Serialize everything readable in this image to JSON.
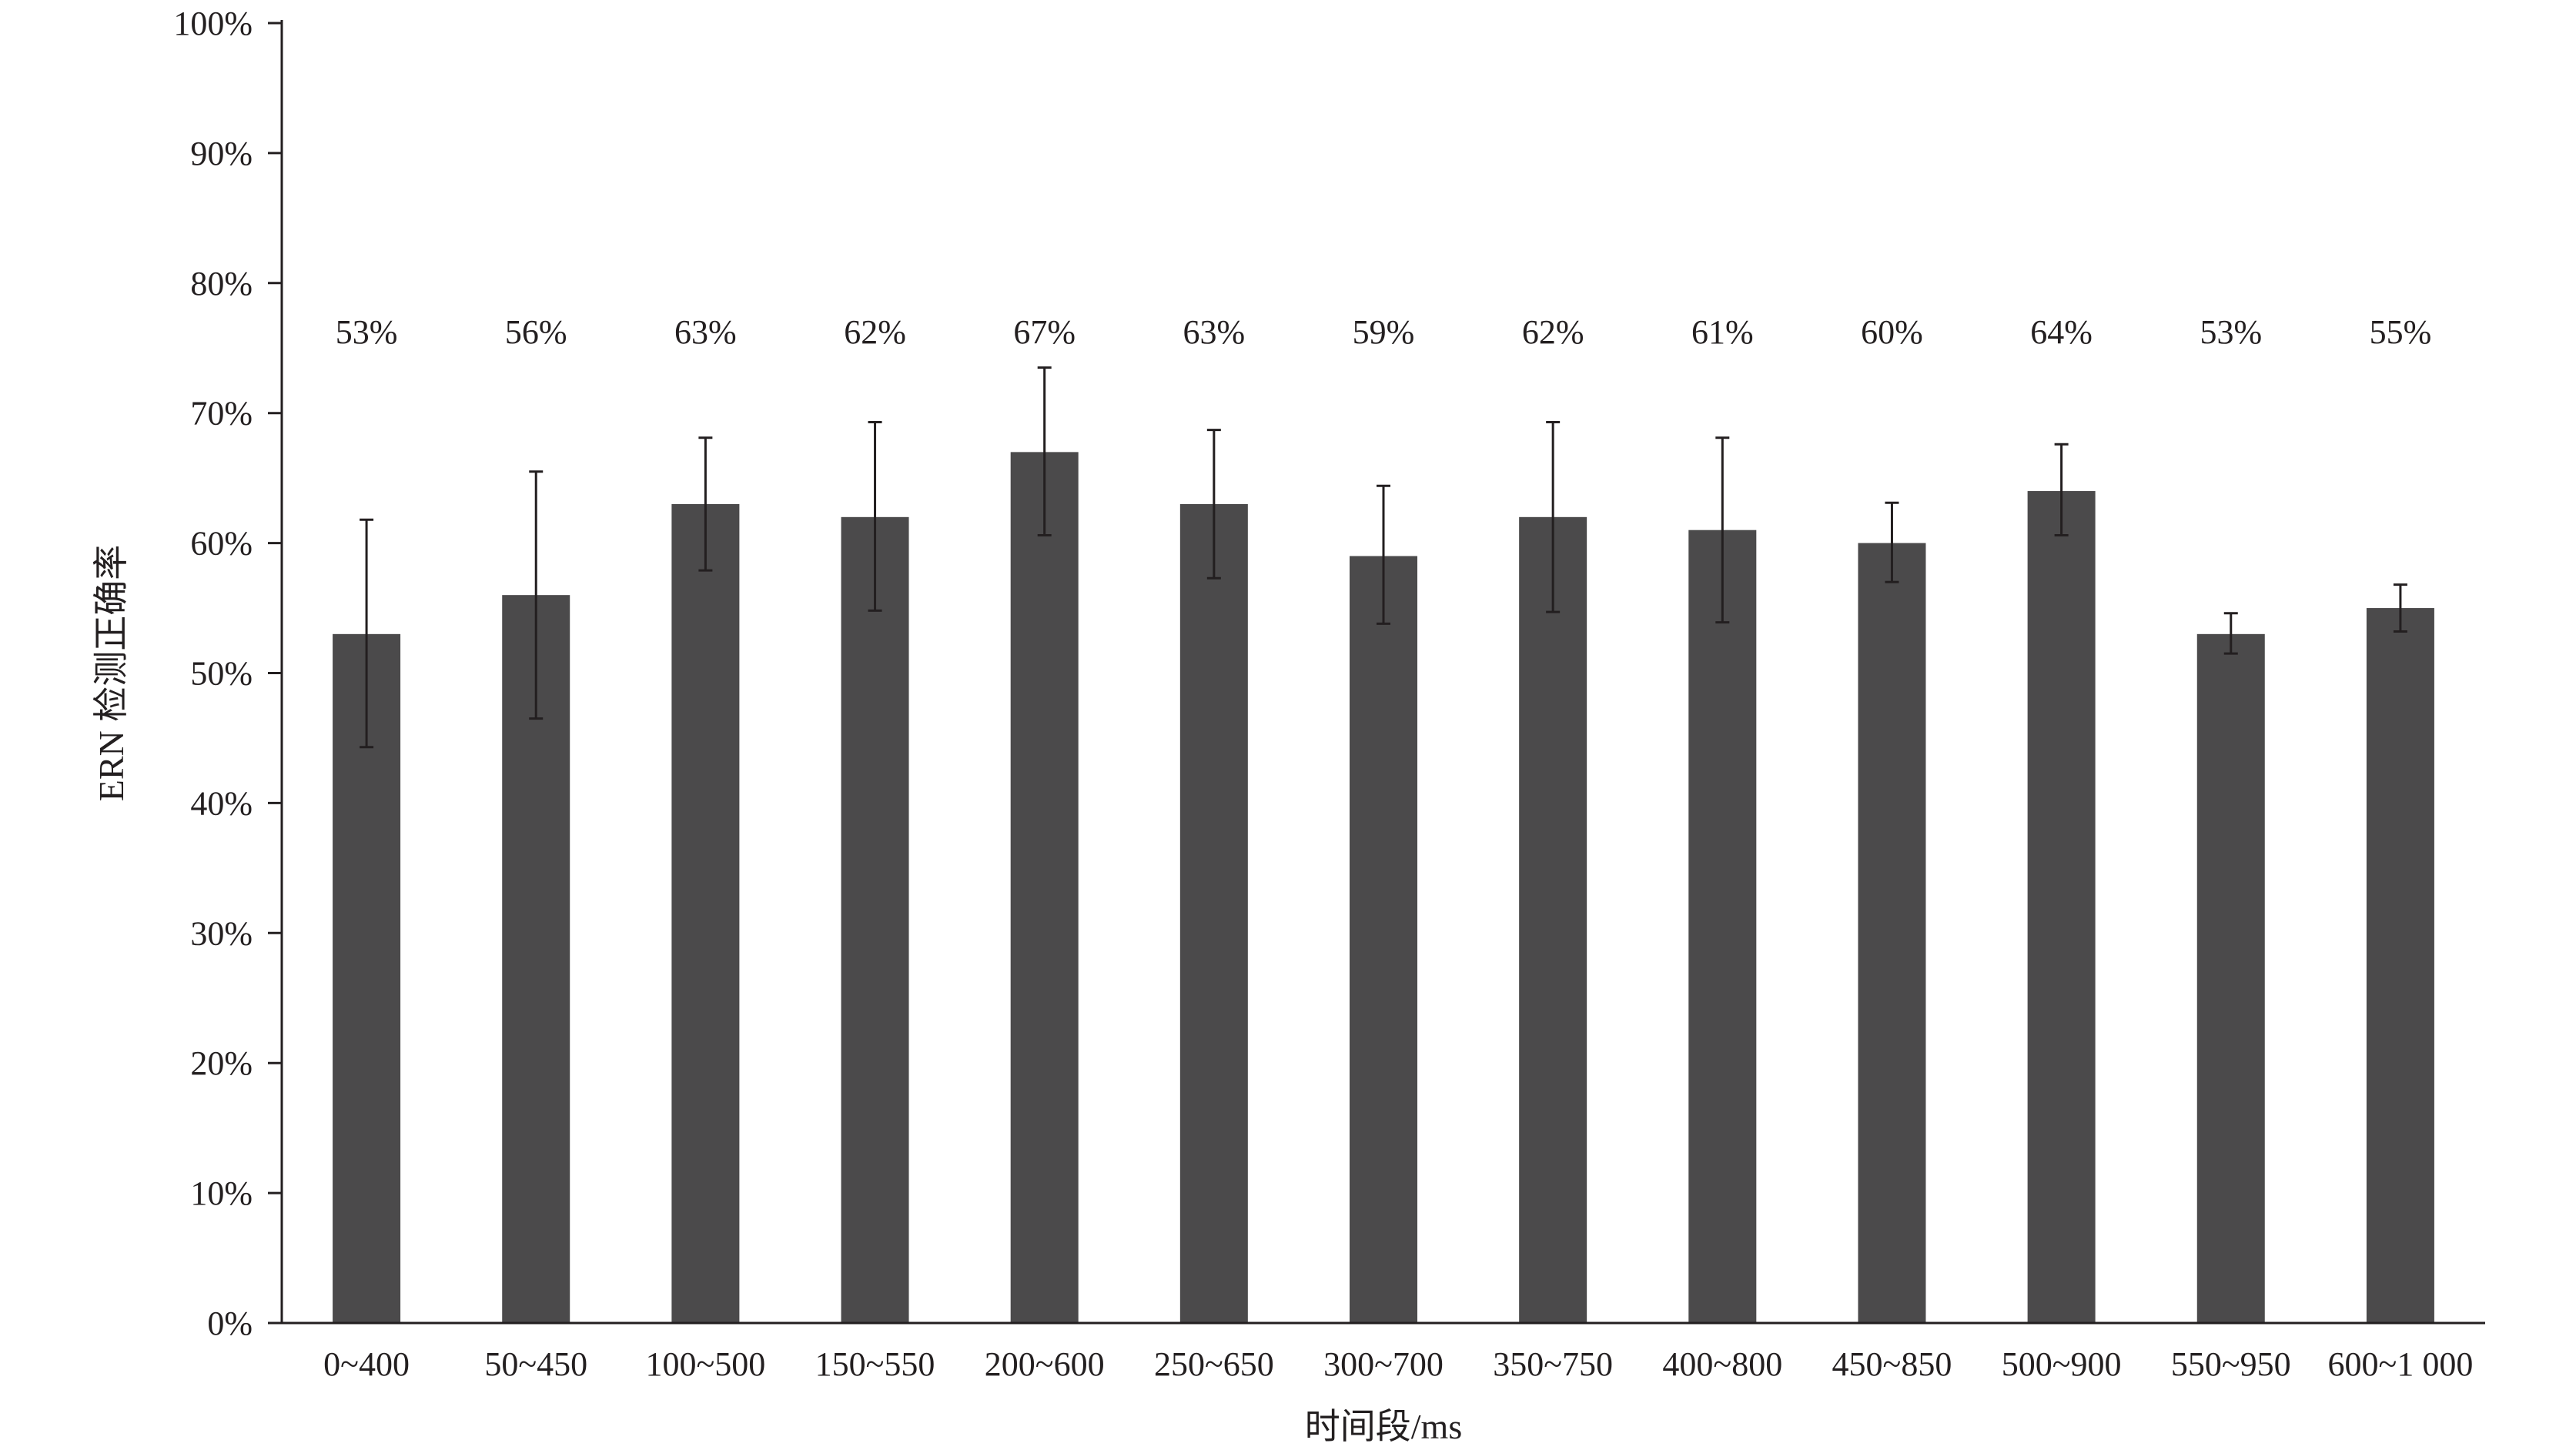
{
  "chart_data": {
    "type": "bar",
    "title": "",
    "xlabel": "时间段/ms",
    "ylabel": "ERN 检测正确率",
    "ylim": [
      0,
      100
    ],
    "yticks": [
      0,
      10,
      20,
      30,
      40,
      50,
      60,
      70,
      80,
      90,
      100
    ],
    "ytick_labels": [
      "0%",
      "10%",
      "20%",
      "30%",
      "40%",
      "50%",
      "60%",
      "70%",
      "80%",
      "90%",
      "100%"
    ],
    "grid": false,
    "legend": "none",
    "categories": [
      "0~400",
      "50~450",
      "100~500",
      "150~550",
      "200~600",
      "250~650",
      "300~700",
      "350~750",
      "400~800",
      "450~850",
      "500~900",
      "550~950",
      "600~1 000"
    ],
    "values": [
      53,
      56,
      63,
      62,
      67,
      63,
      59,
      62,
      61,
      60,
      64,
      53,
      55
    ],
    "value_labels": [
      "53%",
      "56%",
      "63%",
      "62%",
      "67%",
      "63%",
      "59%",
      "62%",
      "61%",
      "60%",
      "64%",
      "53%",
      "55%"
    ],
    "error_bars": {
      "upper": [
        61.8,
        65.5,
        68.1,
        69.3,
        73.5,
        68.7,
        64.4,
        69.3,
        68.1,
        63.1,
        67.6,
        54.6,
        56.8
      ],
      "lower": [
        44.3,
        46.5,
        57.9,
        54.8,
        60.6,
        57.3,
        53.8,
        54.7,
        53.9,
        57.0,
        60.6,
        51.5,
        53.2
      ]
    },
    "colors": {
      "bar": "#4b4a4b",
      "axis": "#231f20",
      "text": "#231f20"
    }
  }
}
